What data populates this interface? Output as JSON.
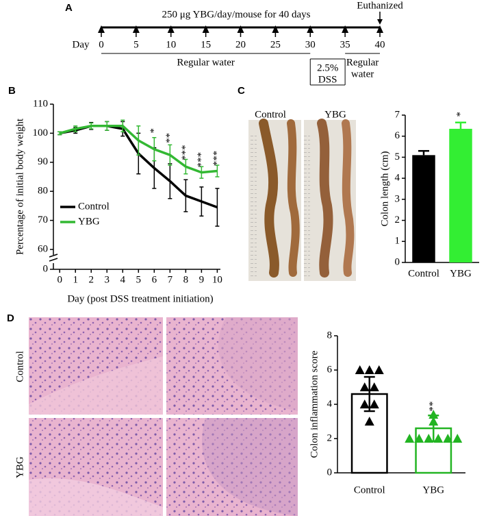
{
  "panel_labels": [
    "A",
    "B",
    "C",
    "D"
  ],
  "timeline": {
    "title": "250 μg YBG/day/mouse for 40 days",
    "day_label": "Day",
    "days": [
      0,
      5,
      10,
      15,
      20,
      25,
      30,
      35,
      40
    ],
    "end_label": "Euthanized",
    "phases": [
      {
        "label": [
          "Regular water"
        ],
        "start": 0,
        "end": 30
      },
      {
        "label": [
          "2.5%",
          "DSS"
        ],
        "start": 30,
        "end": 35
      },
      {
        "label": [
          "Regular",
          "water"
        ],
        "start": 35,
        "end": 40
      }
    ]
  },
  "photo": {
    "labels": [
      "Control",
      "YBG"
    ]
  },
  "histology": {
    "row_labels": [
      "Control",
      "YBG"
    ]
  },
  "chart_data": [
    {
      "type": "line",
      "xlabel": "Day (post DSS treatment initiation)",
      "ylabel": "Percentage of initial body weight",
      "x": [
        0,
        1,
        2,
        3,
        4,
        5,
        6,
        7,
        8,
        9,
        10
      ],
      "xlim": [
        -0.4,
        10.2
      ],
      "xticks": [
        0,
        1,
        2,
        3,
        4,
        5,
        6,
        7,
        8,
        9,
        10
      ],
      "ylim": [
        60,
        110
      ],
      "yticks": [
        60,
        70,
        80,
        90,
        100,
        110
      ],
      "ybreak_ticks": [
        0
      ],
      "legend": "center left",
      "series": [
        {
          "name": "Control",
          "color": "#000000",
          "values": [
            100,
            101,
            102.5,
            102.5,
            101.5,
            93,
            88,
            83.5,
            78.5,
            76.5,
            74.5
          ],
          "errors": [
            0.5,
            1,
            1.2,
            1.5,
            2.5,
            7,
            7,
            6,
            5.5,
            5,
            6.5
          ]
        },
        {
          "name": "YBG",
          "color": "#33b833",
          "values": [
            100,
            101.5,
            102.5,
            102.5,
            102.5,
            97.5,
            94.5,
            92.5,
            88.5,
            86.5,
            87
          ],
          "errors": [
            0.5,
            1,
            1,
            1.5,
            2,
            5,
            4,
            3.5,
            2.5,
            2,
            2
          ]
        }
      ],
      "annotations": [
        {
          "x": 6,
          "label": "*"
        },
        {
          "x": 7,
          "label": "**"
        },
        {
          "x": 8,
          "label": "***"
        },
        {
          "x": 9,
          "label": "***"
        },
        {
          "x": 10,
          "label": "***"
        }
      ]
    },
    {
      "type": "bar",
      "ylabel": "Colon length (cm)",
      "categories": [
        "Control",
        "YBG"
      ],
      "values": [
        5.1,
        6.35
      ],
      "errors": [
        0.2,
        0.3
      ],
      "colors": [
        "#000000",
        "#33ee33"
      ],
      "ylim": [
        0,
        7
      ],
      "yticks": [
        0,
        1,
        2,
        3,
        4,
        5,
        6,
        7
      ],
      "significance": [
        null,
        "*"
      ]
    },
    {
      "type": "bar_scatter",
      "ylabel": "Colon inflammation score",
      "categories": [
        "Control",
        "YBG"
      ],
      "values": [
        4.6,
        2.6
      ],
      "errors": [
        1.0,
        0.75
      ],
      "points": [
        [
          6,
          6,
          6,
          5,
          5,
          4,
          4,
          3
        ],
        [
          3.4,
          3,
          2,
          2,
          2,
          2,
          2,
          2
        ]
      ],
      "colors": [
        "#000000",
        "#22b422"
      ],
      "ylim": [
        0,
        8
      ],
      "yticks": [
        0,
        2,
        4,
        6,
        8
      ],
      "significance": [
        null,
        "**"
      ]
    }
  ]
}
